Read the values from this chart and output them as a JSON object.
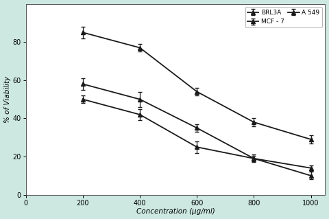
{
  "x": [
    200,
    400,
    600,
    800,
    1000
  ],
  "BRL3A": [
    85,
    77,
    54,
    38,
    29
  ],
  "BRL3A_err": [
    3,
    2,
    2,
    2,
    2
  ],
  "MCF7": [
    58,
    50,
    35,
    19,
    14
  ],
  "MCF7_err": [
    3,
    4,
    2,
    2,
    1.5
  ],
  "A549": [
    50,
    42,
    25,
    19,
    10
  ],
  "A549_err": [
    2,
    3,
    3,
    1.5,
    2
  ],
  "xlabel": "Concentration (µg/ml)",
  "ylabel": "% of Viability",
  "xlim": [
    0,
    1050
  ],
  "ylim": [
    0,
    100
  ],
  "xticks": [
    0,
    200,
    400,
    600,
    800,
    1000
  ],
  "yticks": [
    0,
    20,
    40,
    60,
    80
  ],
  "legend_labels": [
    "BRL3A",
    "MCF - 7",
    "A 549"
  ],
  "line_color": "#1a1a1a",
  "bg_color": "#cce8e0",
  "plot_bg": "#ffffff",
  "marker": "^",
  "linewidth": 1.3,
  "markersize": 4.5,
  "capsize": 2.5,
  "elinewidth": 0.9,
  "fontsize_label": 7.5,
  "fontsize_tick": 7,
  "fontsize_legend": 6.5
}
